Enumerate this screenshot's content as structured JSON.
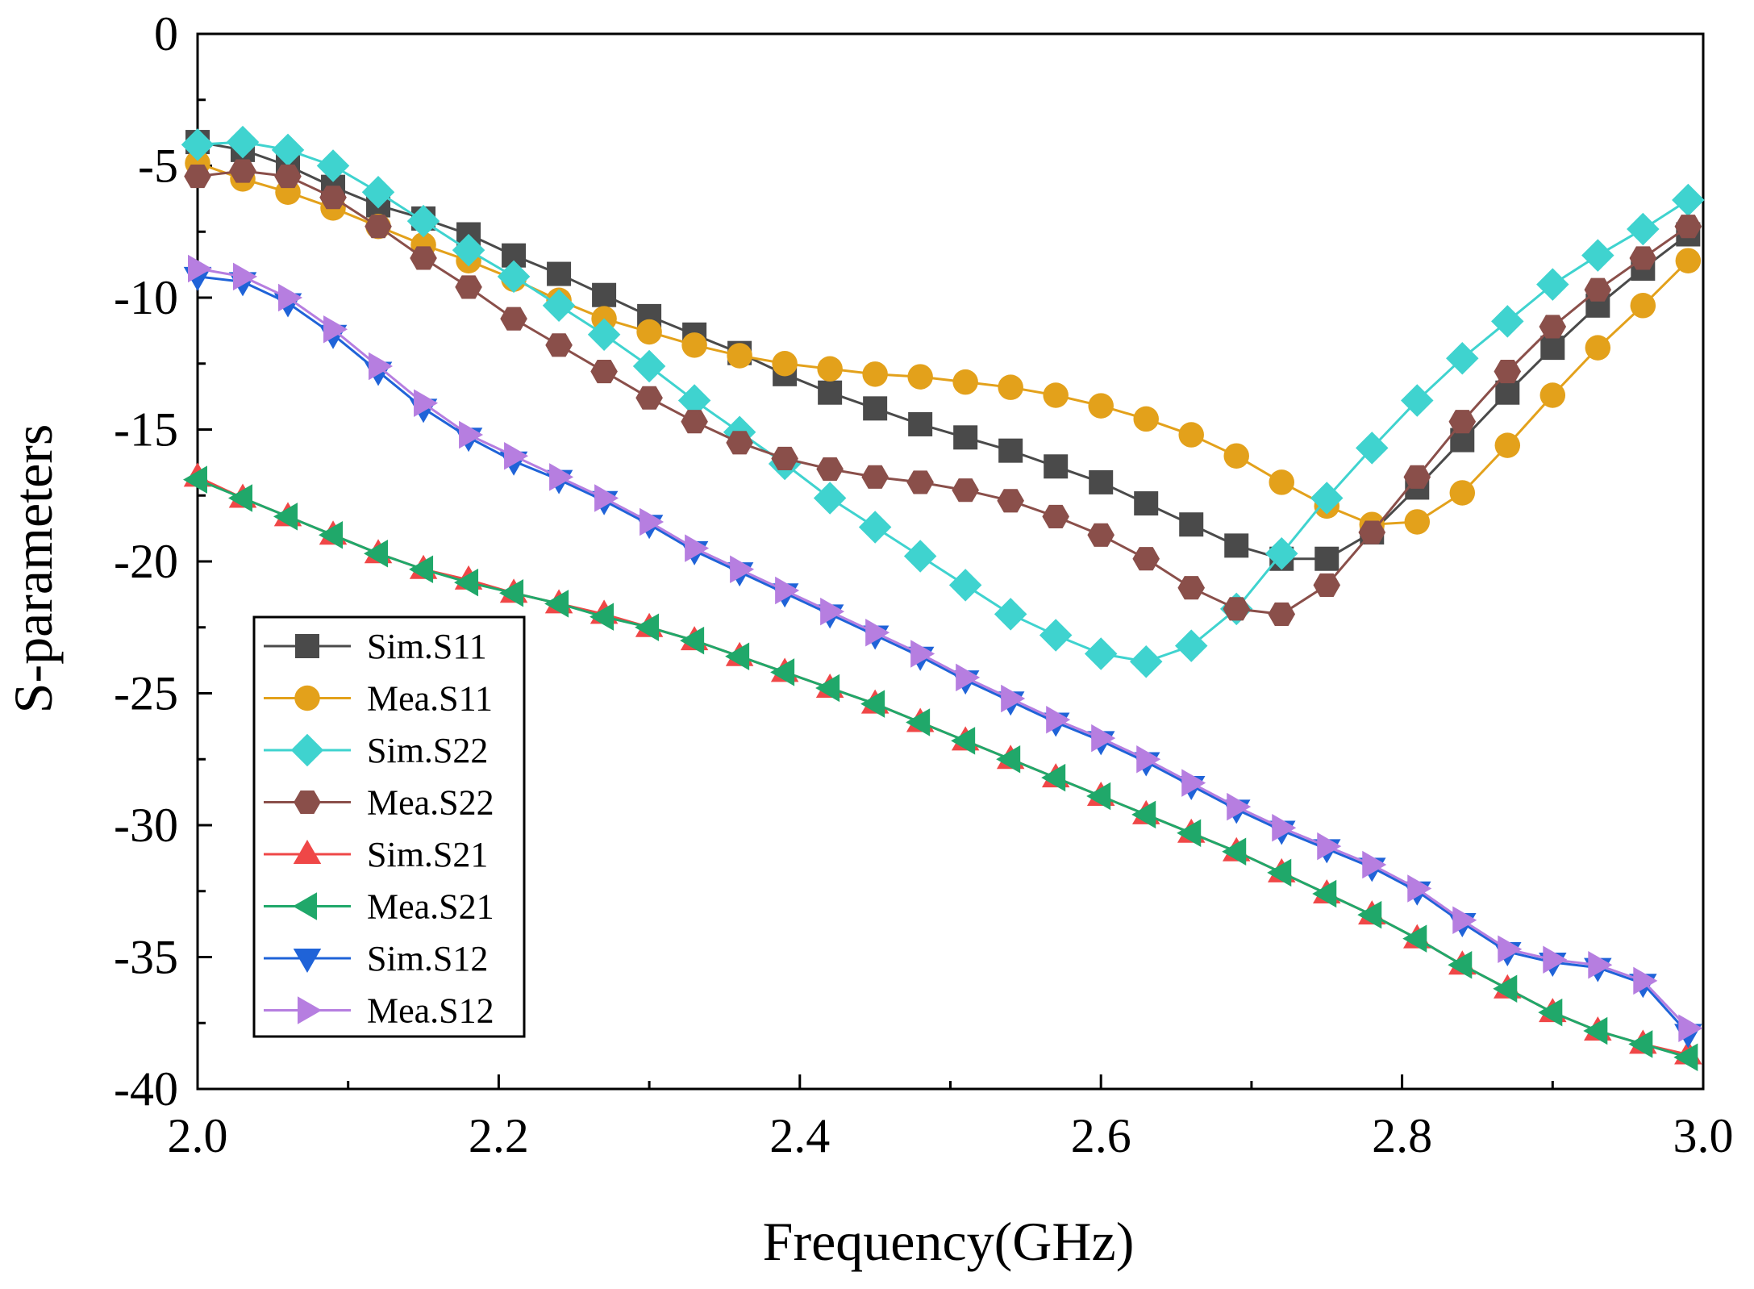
{
  "chart_data": {
    "type": "line",
    "title": "",
    "xlabel": "Frequency(GHz)",
    "ylabel": "S-parameters",
    "xlim": [
      2.0,
      3.0
    ],
    "ylim": [
      -40,
      0
    ],
    "x_ticks": [
      2.0,
      2.2,
      2.4,
      2.6,
      2.8,
      3.0
    ],
    "x_tick_labels": [
      "2.0",
      "2.2",
      "2.4",
      "2.6",
      "2.8",
      "3.0"
    ],
    "y_ticks": [
      0,
      -5,
      -10,
      -15,
      -20,
      -25,
      -30,
      -35,
      -40
    ],
    "y_tick_labels": [
      "0",
      "-5",
      "-10",
      "-15",
      "-20",
      "-25",
      "-30",
      "-35",
      "-40"
    ],
    "grid": false,
    "legend_position": "bottom-left",
    "x": [
      2.0,
      2.03,
      2.06,
      2.09,
      2.12,
      2.15,
      2.18,
      2.21,
      2.24,
      2.27,
      2.3,
      2.33,
      2.36,
      2.39,
      2.42,
      2.45,
      2.48,
      2.51,
      2.54,
      2.57,
      2.6,
      2.63,
      2.66,
      2.69,
      2.72,
      2.75,
      2.78,
      2.81,
      2.84,
      2.87,
      2.9,
      2.93,
      2.96,
      2.99
    ],
    "series": [
      {
        "name": "Sim.S11",
        "color": "#4a4a4a",
        "marker": "square",
        "values": [
          -4.1,
          -4.4,
          -5.0,
          -5.8,
          -6.5,
          -7.0,
          -7.6,
          -8.4,
          -9.1,
          -9.9,
          -10.7,
          -11.4,
          -12.1,
          -12.9,
          -13.6,
          -14.2,
          -14.8,
          -15.3,
          -15.8,
          -16.4,
          -17.0,
          -17.8,
          -18.6,
          -19.4,
          -19.9,
          -19.9,
          -18.9,
          -17.2,
          -15.4,
          -13.6,
          -11.9,
          -10.3,
          -8.9,
          -7.6
        ]
      },
      {
        "name": "Mea.S11",
        "color": "#e3a11b",
        "marker": "circle",
        "values": [
          -4.9,
          -5.5,
          -6.0,
          -6.6,
          -7.3,
          -8.0,
          -8.6,
          -9.3,
          -10.1,
          -10.8,
          -11.3,
          -11.8,
          -12.2,
          -12.5,
          -12.7,
          -12.9,
          -13.0,
          -13.2,
          -13.4,
          -13.7,
          -14.1,
          -14.6,
          -15.2,
          -16.0,
          -17.0,
          -17.9,
          -18.6,
          -18.5,
          -17.4,
          -15.6,
          -13.7,
          -11.9,
          -10.3,
          -8.6
        ]
      },
      {
        "name": "Sim.S22",
        "color": "#3fd3cf",
        "marker": "diamond",
        "values": [
          -4.2,
          -4.1,
          -4.4,
          -5.0,
          -6.0,
          -7.1,
          -8.2,
          -9.2,
          -10.3,
          -11.4,
          -12.6,
          -13.9,
          -15.1,
          -16.3,
          -17.6,
          -18.7,
          -19.8,
          -20.9,
          -22.0,
          -22.8,
          -23.5,
          -23.8,
          -23.2,
          -21.8,
          -19.7,
          -17.6,
          -15.7,
          -13.9,
          -12.3,
          -10.9,
          -9.5,
          -8.4,
          -7.4,
          -6.3
        ]
      },
      {
        "name": "Mea.S22",
        "color": "#8a4f4a",
        "marker": "hexagon",
        "values": [
          -5.4,
          -5.2,
          -5.4,
          -6.2,
          -7.3,
          -8.5,
          -9.6,
          -10.8,
          -11.8,
          -12.8,
          -13.8,
          -14.7,
          -15.5,
          -16.1,
          -16.5,
          -16.8,
          -17.0,
          -17.3,
          -17.7,
          -18.3,
          -19.0,
          -19.9,
          -21.0,
          -21.8,
          -22.0,
          -20.9,
          -18.9,
          -16.8,
          -14.7,
          -12.8,
          -11.1,
          -9.7,
          -8.5,
          -7.3
        ]
      },
      {
        "name": "Sim.S21",
        "color": "#ef4747",
        "marker": "triangle-up",
        "values": [
          -16.8,
          -17.6,
          -18.3,
          -19.0,
          -19.7,
          -20.3,
          -20.7,
          -21.2,
          -21.6,
          -22.0,
          -22.5,
          -23.0,
          -23.6,
          -24.2,
          -24.8,
          -25.4,
          -26.1,
          -26.8,
          -27.5,
          -28.2,
          -28.9,
          -29.6,
          -30.3,
          -31.0,
          -31.8,
          -32.6,
          -33.4,
          -34.3,
          -35.3,
          -36.2,
          -37.1,
          -37.8,
          -38.3,
          -38.7
        ]
      },
      {
        "name": "Mea.S21",
        "color": "#20a86a",
        "marker": "triangle-left",
        "values": [
          -16.9,
          -17.6,
          -18.3,
          -19.0,
          -19.7,
          -20.3,
          -20.8,
          -21.2,
          -21.6,
          -22.1,
          -22.5,
          -23.0,
          -23.6,
          -24.2,
          -24.8,
          -25.4,
          -26.1,
          -26.8,
          -27.5,
          -28.2,
          -28.9,
          -29.6,
          -30.3,
          -31.0,
          -31.8,
          -32.6,
          -33.4,
          -34.3,
          -35.3,
          -36.2,
          -37.1,
          -37.8,
          -38.3,
          -38.8
        ]
      },
      {
        "name": "Sim.S12",
        "color": "#1f63d8",
        "marker": "triangle-down",
        "values": [
          -9.2,
          -9.4,
          -10.2,
          -11.4,
          -12.8,
          -14.2,
          -15.3,
          -16.2,
          -16.9,
          -17.7,
          -18.6,
          -19.6,
          -20.4,
          -21.2,
          -22.0,
          -22.8,
          -23.6,
          -24.5,
          -25.3,
          -26.1,
          -26.8,
          -27.6,
          -28.5,
          -29.4,
          -30.2,
          -30.9,
          -31.6,
          -32.5,
          -33.7,
          -34.8,
          -35.2,
          -35.4,
          -36.0,
          -37.9
        ]
      },
      {
        "name": "Mea.S12",
        "color": "#b67ee0",
        "marker": "triangle-right",
        "values": [
          -8.9,
          -9.2,
          -10.0,
          -11.2,
          -12.6,
          -14.0,
          -15.2,
          -16.0,
          -16.8,
          -17.6,
          -18.5,
          -19.5,
          -20.3,
          -21.1,
          -21.9,
          -22.7,
          -23.5,
          -24.4,
          -25.2,
          -26.0,
          -26.7,
          -27.5,
          -28.4,
          -29.3,
          -30.1,
          -30.8,
          -31.5,
          -32.4,
          -33.6,
          -34.7,
          -35.1,
          -35.3,
          -35.9,
          -37.7
        ]
      }
    ]
  }
}
